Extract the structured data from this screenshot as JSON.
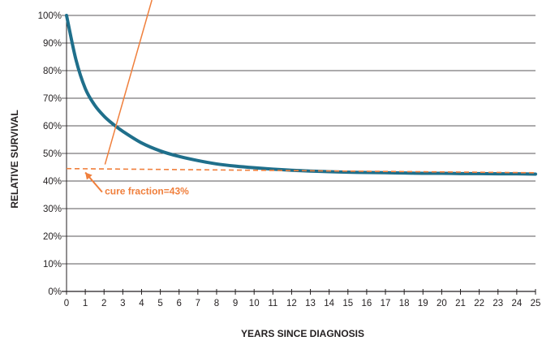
{
  "chart_data": {
    "type": "line",
    "title": "",
    "xlabel": "YEARS SINCE DIAGNOSIS",
    "ylabel": "RELATIVE SURVIVAL",
    "xlim": [
      0,
      25
    ],
    "ylim": [
      0,
      100
    ],
    "x_ticks": [
      "0",
      "1",
      "2",
      "3",
      "4",
      "5",
      "6",
      "7",
      "8",
      "9",
      "10",
      "11",
      "12",
      "13",
      "14",
      "15",
      "16",
      "17",
      "18",
      "19",
      "20",
      "21",
      "22",
      "23",
      "24",
      "25"
    ],
    "y_ticks": [
      "0%",
      "10%",
      "20%",
      "30%",
      "40%",
      "50%",
      "60%",
      "70%",
      "80%",
      "90%",
      "100%"
    ],
    "grid": "horizontal",
    "colors": {
      "survival": "#1f6f8b",
      "cure": "#f07f3c",
      "grid": "#231f20"
    },
    "series": [
      {
        "x": [
          0,
          0.5,
          1,
          1.5,
          2,
          2.5,
          3,
          4,
          5,
          6,
          7,
          8,
          9,
          10,
          11,
          12,
          13,
          14,
          15,
          16,
          17,
          18,
          19,
          20,
          21,
          22,
          23,
          24,
          25
        ],
        "values": [
          100,
          84,
          73.5,
          67.5,
          63.5,
          60.5,
          58,
          53.8,
          50.9,
          48.9,
          47.4,
          46.2,
          45.4,
          44.8,
          44.3,
          43.9,
          43.6,
          43.4,
          43.2,
          43.1,
          43.0,
          42.9,
          42.8,
          42.8,
          42.7,
          42.7,
          42.6,
          42.6,
          42.5
        ]
      }
    ],
    "cure_fraction": {
      "value": 43,
      "x_start": 0,
      "x_end": 25,
      "y_start": 44.5,
      "label": "cure fraction=43%"
    }
  }
}
